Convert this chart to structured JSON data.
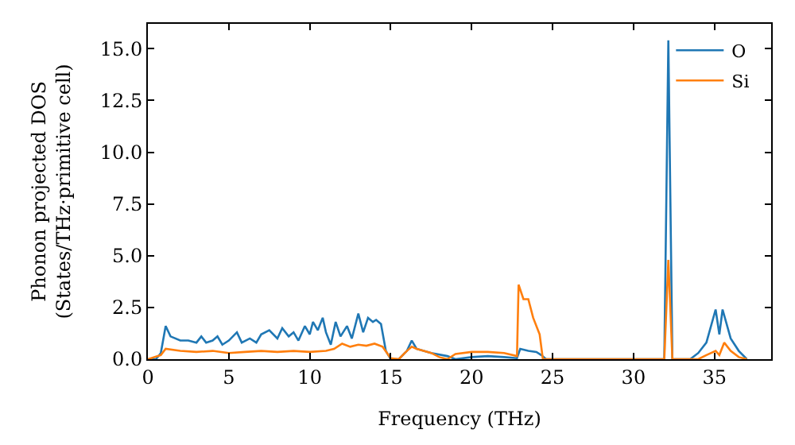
{
  "chart_data": {
    "type": "line",
    "xlabel": "Frequency (THz)",
    "ylabel": "Phonon projected DOS\n(States/THz·primitive cell)",
    "xlim": [
      0,
      38.5
    ],
    "ylim": [
      0,
      16.2
    ],
    "xticks": [
      0,
      5,
      10,
      15,
      20,
      25,
      30,
      35
    ],
    "yticks": [
      {
        "value": 0,
        "label": "0.0"
      },
      2.5,
      {
        "value": 5,
        "label": "5.0"
      },
      7.5,
      {
        "value": 10,
        "label": "10.0"
      },
      12.5,
      {
        "value": 15,
        "label": "15.0"
      }
    ],
    "legend": "top right",
    "series": [
      {
        "name": "O",
        "color": "#1f77b4",
        "x": [
          0,
          0.5,
          0.8,
          1.1,
          1.4,
          2,
          2.5,
          3,
          3.3,
          3.6,
          4,
          4.3,
          4.6,
          5,
          5.5,
          5.8,
          6.3,
          6.7,
          7,
          7.5,
          8,
          8.3,
          8.7,
          9,
          9.3,
          9.7,
          10,
          10.2,
          10.5,
          10.8,
          11,
          11.3,
          11.6,
          11.9,
          12.3,
          12.6,
          13,
          13.3,
          13.6,
          13.9,
          14.1,
          14.4,
          14.7,
          15,
          15.5,
          16,
          16.3,
          16.6,
          17.5,
          18.5,
          19,
          20,
          21,
          22,
          22.8,
          23,
          23.5,
          24,
          24.3,
          24.6,
          31.9,
          32.15,
          32.4,
          33.5,
          34,
          34.5,
          35.07,
          35.3,
          35.5,
          36,
          36.5,
          37
        ],
        "values": [
          0,
          0,
          0.3,
          1.6,
          1.1,
          0.9,
          0.9,
          0.8,
          1.1,
          0.8,
          0.9,
          1.1,
          0.7,
          0.9,
          1.3,
          0.8,
          1.0,
          0.8,
          1.2,
          1.4,
          1.0,
          1.5,
          1.1,
          1.3,
          0.9,
          1.6,
          1.2,
          1.8,
          1.4,
          2.0,
          1.3,
          0.7,
          1.8,
          1.1,
          1.6,
          1.0,
          2.2,
          1.3,
          2.0,
          1.8,
          1.9,
          1.7,
          0.4,
          0,
          0,
          0.4,
          0.9,
          0.5,
          0.3,
          0.15,
          0,
          0.1,
          0.15,
          0.1,
          0.05,
          0.5,
          0.4,
          0.35,
          0.2,
          0,
          0,
          15.4,
          0,
          0,
          0.3,
          0.8,
          2.4,
          1.2,
          2.4,
          1.0,
          0.4,
          0
        ]
      },
      {
        "name": "Si",
        "color": "#ff7f0e",
        "x": [
          0,
          0.8,
          1.1,
          2,
          3,
          4,
          5,
          6,
          7,
          8,
          9,
          10,
          11,
          11.5,
          12,
          12.5,
          13,
          13.5,
          14,
          14.5,
          15,
          15.5,
          16,
          16.3,
          16.6,
          17.5,
          18,
          18.5,
          19,
          20,
          21,
          22,
          22.8,
          22.9,
          23.2,
          23.5,
          23.8,
          24.2,
          24.4,
          31.9,
          32.15,
          32.4,
          34,
          34.5,
          35.07,
          35.3,
          35.6,
          36,
          36.5,
          37
        ],
        "values": [
          0,
          0.2,
          0.5,
          0.4,
          0.35,
          0.4,
          0.3,
          0.35,
          0.4,
          0.35,
          0.4,
          0.35,
          0.4,
          0.5,
          0.75,
          0.6,
          0.7,
          0.65,
          0.75,
          0.6,
          0.05,
          0,
          0.4,
          0.6,
          0.5,
          0.3,
          0.1,
          0,
          0.25,
          0.35,
          0.35,
          0.3,
          0.15,
          3.6,
          2.9,
          2.9,
          2.0,
          1.2,
          0,
          0,
          4.8,
          0,
          0,
          0.2,
          0.4,
          0.2,
          0.8,
          0.4,
          0.1,
          0
        ]
      }
    ]
  }
}
